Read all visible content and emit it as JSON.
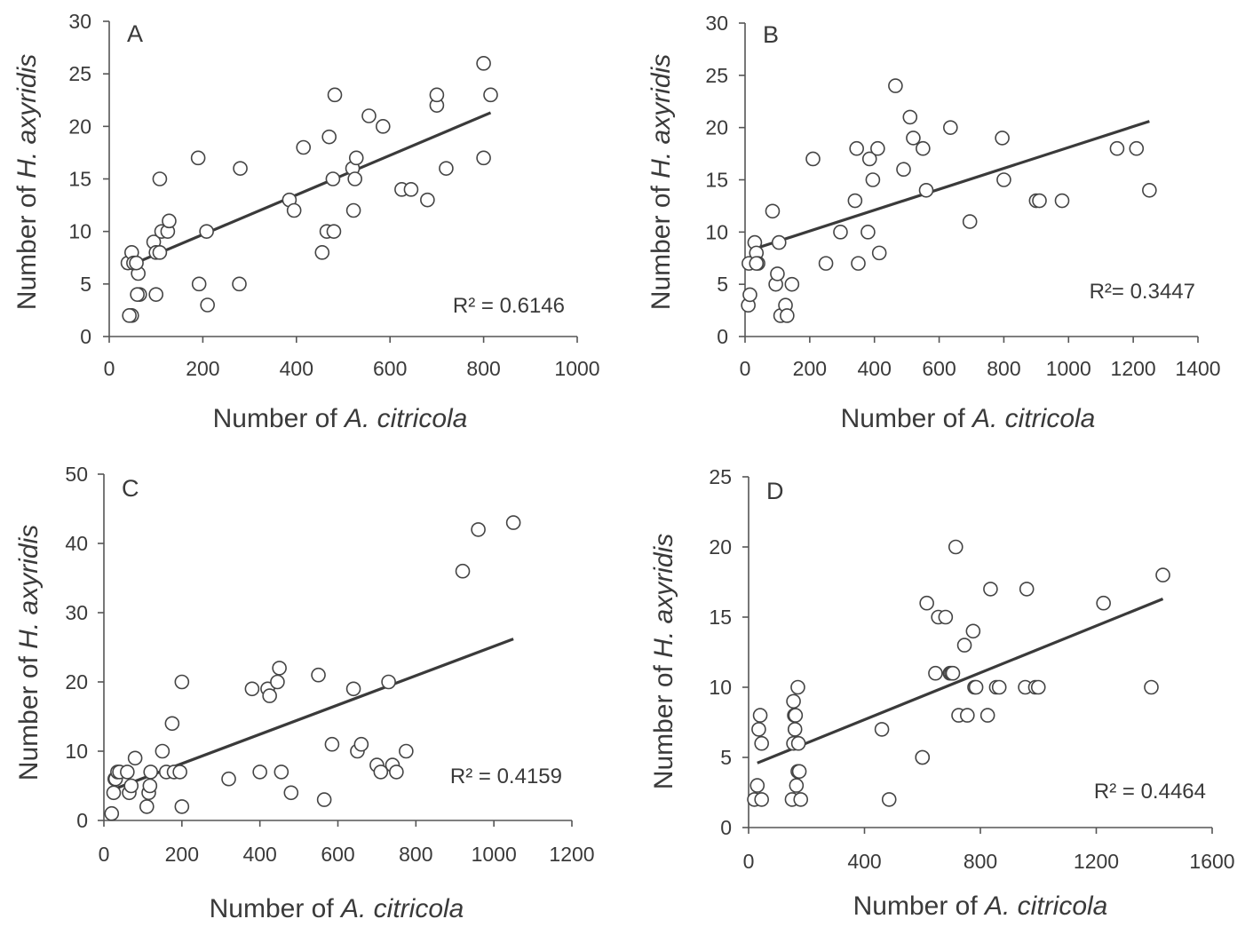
{
  "chart_data": [
    {
      "panel": "A",
      "type": "scatter",
      "xlabel_parts": [
        "Number of ",
        "A. citricola"
      ],
      "ylabel_parts": [
        "Number of ",
        "H. axyridis"
      ],
      "xlim": [
        0,
        1000
      ],
      "ylim": [
        0,
        30
      ],
      "xticks": [
        0,
        200,
        400,
        600,
        800,
        1000
      ],
      "yticks": [
        0,
        5,
        10,
        15,
        20,
        25,
        30
      ],
      "r2_text": "R² = 0.6146",
      "trendline": {
        "x": [
          30,
          815
        ],
        "y": [
          6.5,
          21.3
        ]
      },
      "points": {
        "x": [
          40,
          48,
          55,
          62,
          65,
          48,
          60,
          43,
          52,
          58,
          95,
          100,
          108,
          112,
          125,
          128,
          100,
          108,
          190,
          192,
          210,
          208,
          278,
          280,
          385,
          395,
          415,
          455,
          465,
          470,
          478,
          480,
          482,
          520,
          525,
          522,
          528,
          555,
          585,
          625,
          645,
          680,
          700,
          700,
          720,
          800,
          800,
          815
        ],
        "y": [
          7,
          8,
          7,
          6,
          4,
          2,
          4,
          2,
          7,
          7,
          9,
          8,
          15,
          10,
          10,
          11,
          4,
          8,
          17,
          5,
          3,
          10,
          5,
          16,
          13,
          12,
          18,
          8,
          10,
          19,
          15,
          10,
          23,
          16,
          15,
          12,
          17,
          21,
          20,
          14,
          14,
          13,
          22,
          23,
          16,
          17,
          26,
          23
        ]
      }
    },
    {
      "panel": "B",
      "type": "scatter",
      "xlabel_parts": [
        "Number of ",
        "A. citricola"
      ],
      "ylabel_parts": [
        "Number of ",
        "H. axyridis"
      ],
      "xlim": [
        0,
        1400
      ],
      "ylim": [
        0,
        30
      ],
      "xticks": [
        0,
        200,
        400,
        600,
        800,
        1000,
        1200,
        1400
      ],
      "yticks": [
        0,
        5,
        10,
        15,
        20,
        25,
        30
      ],
      "r2_text": "R²= 0.3447",
      "trendline": {
        "x": [
          30,
          1250
        ],
        "y": [
          8.4,
          20.6
        ]
      },
      "points": {
        "x": [
          10,
          15,
          12,
          30,
          35,
          40,
          35,
          85,
          95,
          100,
          105,
          110,
          125,
          130,
          145,
          210,
          250,
          295,
          340,
          345,
          350,
          380,
          385,
          395,
          410,
          415,
          465,
          490,
          510,
          520,
          550,
          560,
          635,
          695,
          795,
          800,
          900,
          910,
          980,
          1150,
          1210,
          1250
        ],
        "y": [
          3,
          4,
          7,
          9,
          8,
          7,
          7,
          12,
          5,
          6,
          9,
          2,
          3,
          2,
          5,
          17,
          7,
          10,
          13,
          18,
          7,
          10,
          17,
          15,
          18,
          8,
          24,
          16,
          21,
          19,
          18,
          14,
          20,
          11,
          19,
          15,
          13,
          13,
          13,
          18,
          18,
          14
        ]
      }
    },
    {
      "panel": "C",
      "type": "scatter",
      "xlabel_parts": [
        "Number of ",
        "A. citricola"
      ],
      "ylabel_parts": [
        "Number of ",
        "H. axyridis"
      ],
      "xlim": [
        0,
        1200
      ],
      "ylim": [
        0,
        50
      ],
      "xticks": [
        0,
        200,
        400,
        600,
        800,
        1000,
        1200
      ],
      "yticks": [
        0,
        10,
        20,
        30,
        40,
        50
      ],
      "r2_text": "R² = 0.4159",
      "trendline": {
        "x": [
          25,
          1050
        ],
        "y": [
          4.5,
          26.2
        ]
      },
      "points": {
        "x": [
          20,
          25,
          28,
          30,
          35,
          40,
          60,
          65,
          70,
          80,
          110,
          115,
          118,
          120,
          150,
          160,
          175,
          180,
          195,
          200,
          200,
          320,
          380,
          400,
          420,
          425,
          445,
          450,
          455,
          480,
          550,
          565,
          585,
          640,
          650,
          660,
          700,
          710,
          730,
          740,
          750,
          775,
          920,
          960,
          1050
        ],
        "y": [
          1,
          4,
          6,
          6,
          7,
          7,
          7,
          4,
          5,
          9,
          2,
          4,
          5,
          7,
          10,
          7,
          14,
          7,
          7,
          2,
          20,
          6,
          19,
          7,
          19,
          18,
          20,
          22,
          7,
          4,
          21,
          3,
          11,
          19,
          10,
          11,
          8,
          7,
          20,
          8,
          7,
          10,
          36,
          42,
          43
        ]
      }
    },
    {
      "panel": "D",
      "type": "scatter",
      "xlabel_parts": [
        "Number of ",
        "A. citricola"
      ],
      "ylabel_parts": [
        "Number of ",
        "H. axyridis"
      ],
      "xlim": [
        0,
        1600
      ],
      "ylim": [
        0,
        25
      ],
      "xticks": [
        0,
        400,
        800,
        1200,
        1600
      ],
      "yticks": [
        0,
        5,
        10,
        15,
        20,
        25
      ],
      "r2_text": "R² = 0.4464",
      "trendline": {
        "x": [
          30,
          1430
        ],
        "y": [
          4.6,
          16.3
        ]
      },
      "points": {
        "x": [
          20,
          30,
          35,
          40,
          45,
          45,
          150,
          155,
          155,
          158,
          160,
          162,
          165,
          170,
          170,
          172,
          175,
          180,
          460,
          485,
          600,
          600,
          615,
          645,
          655,
          680,
          695,
          700,
          705,
          715,
          725,
          745,
          755,
          775,
          780,
          785,
          825,
          835,
          855,
          865,
          955,
          960,
          990,
          1000,
          1225,
          1390,
          1430
        ],
        "y": [
          2,
          3,
          7,
          8,
          6,
          2,
          2,
          9,
          6,
          8,
          7,
          8,
          3,
          4,
          10,
          6,
          4,
          2,
          7,
          2,
          5,
          5,
          16,
          11,
          15,
          15,
          11,
          11,
          11,
          20,
          8,
          13,
          8,
          14,
          10,
          10,
          8,
          17,
          10,
          10,
          10,
          17,
          10,
          10,
          16,
          10,
          18
        ]
      }
    }
  ]
}
